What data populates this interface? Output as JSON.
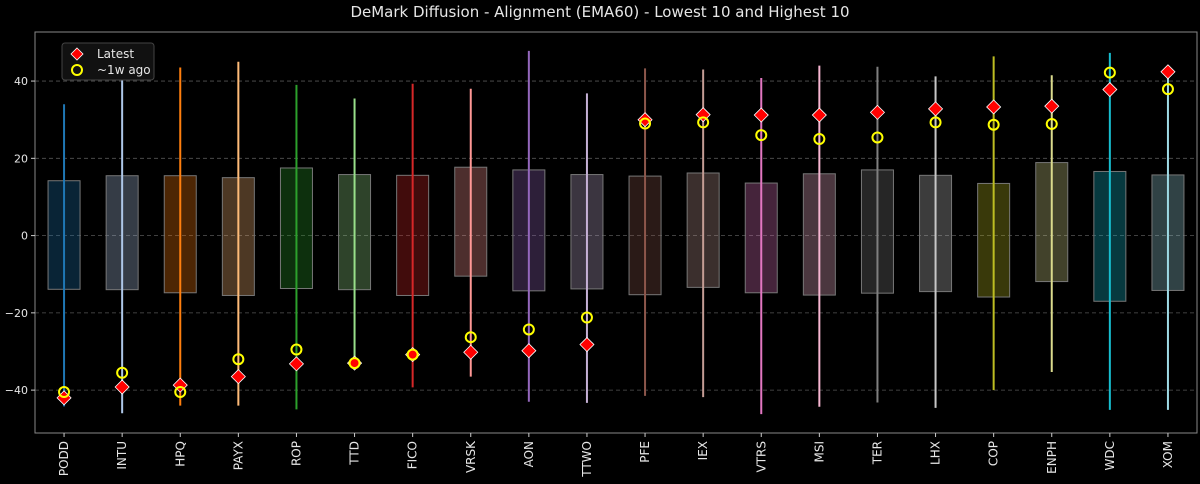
{
  "chart_data": {
    "type": "box-range",
    "title": "DeMark Diffusion - Alignment (EMA60) - Lowest 10 and Highest 10",
    "xlabel": "",
    "ylabel": "",
    "ylim": [
      -51.1,
      52.7
    ],
    "yticks": [
      -40,
      -20,
      0,
      20,
      40
    ],
    "grid": true,
    "legend": {
      "placement": "top-left",
      "entries": [
        "Latest",
        "~1w ago"
      ]
    },
    "marker_colors": {
      "latest": "#ff0000",
      "prev": "#ffff00"
    },
    "categories": [
      "PODD",
      "INTU",
      "HPQ",
      "PAYX",
      "ROP",
      "TTD",
      "FICO",
      "VRSK",
      "AON",
      "TTWO",
      "PFE",
      "IEX",
      "VTRS",
      "MSI",
      "TER",
      "LHX",
      "COP",
      "ENPH",
      "WDC",
      "XOM"
    ],
    "colors": [
      "#1f77b4",
      "#aec7e8",
      "#ff7f0e",
      "#ffbb78",
      "#2ca02c",
      "#98df8a",
      "#d62728",
      "#ff9896",
      "#9467bd",
      "#c5b0d5",
      "#8c564b",
      "#c49c94",
      "#e377c2",
      "#f7b6d2",
      "#7f7f7f",
      "#c7c7c7",
      "#bcbd22",
      "#dbdb8d",
      "#17becf",
      "#9edae5"
    ],
    "range_min": [
      -44.2,
      -46,
      -44,
      -44,
      -45,
      -33,
      -39.3,
      -36.5,
      -43,
      -43.3,
      -41.5,
      -41.8,
      -46.2,
      -44.3,
      -43.2,
      -44.6,
      -40,
      -35.3,
      -45.1,
      -45.1
    ],
    "range_max": [
      34,
      40.2,
      43.5,
      45,
      39,
      35.5,
      39.3,
      38,
      47.8,
      36.8,
      43.3,
      43,
      40.8,
      44,
      43.7,
      41.2,
      46.4,
      41.5,
      47.3,
      42.3
    ],
    "box_low": [
      -13.9,
      -14,
      -14.8,
      -15.5,
      -13.7,
      -14,
      -15.5,
      -10.5,
      -14.3,
      -13.8,
      -15.3,
      -13.4,
      -14.8,
      -15.4,
      -14.9,
      -14.5,
      -15.9,
      -11.9,
      -17,
      -14.2
    ],
    "box_high": [
      14.2,
      15.5,
      15.5,
      15,
      17.5,
      15.8,
      15.6,
      17.7,
      17,
      15.8,
      15.4,
      16.2,
      13.6,
      16,
      17,
      15.6,
      13.5,
      18.9,
      16.6,
      15.7
    ],
    "series": [
      {
        "name": "Latest",
        "values": [
          -42,
          -39.2,
          -38.7,
          -36.5,
          -33.2,
          -33,
          -30.8,
          -30.2,
          -29.8,
          -28.2,
          30,
          31.3,
          31.2,
          31.2,
          31.9,
          32.8,
          33.3,
          33.5,
          37.8,
          42.4
        ]
      },
      {
        "name": "~1w ago",
        "values": [
          -40.5,
          -35.5,
          -40.5,
          -32,
          -29.5,
          -33,
          -30.8,
          -26.3,
          -24.3,
          -21.2,
          29,
          29.3,
          26,
          25,
          25.4,
          29.3,
          28.7,
          28.9,
          42.2,
          37.9
        ]
      }
    ]
  }
}
